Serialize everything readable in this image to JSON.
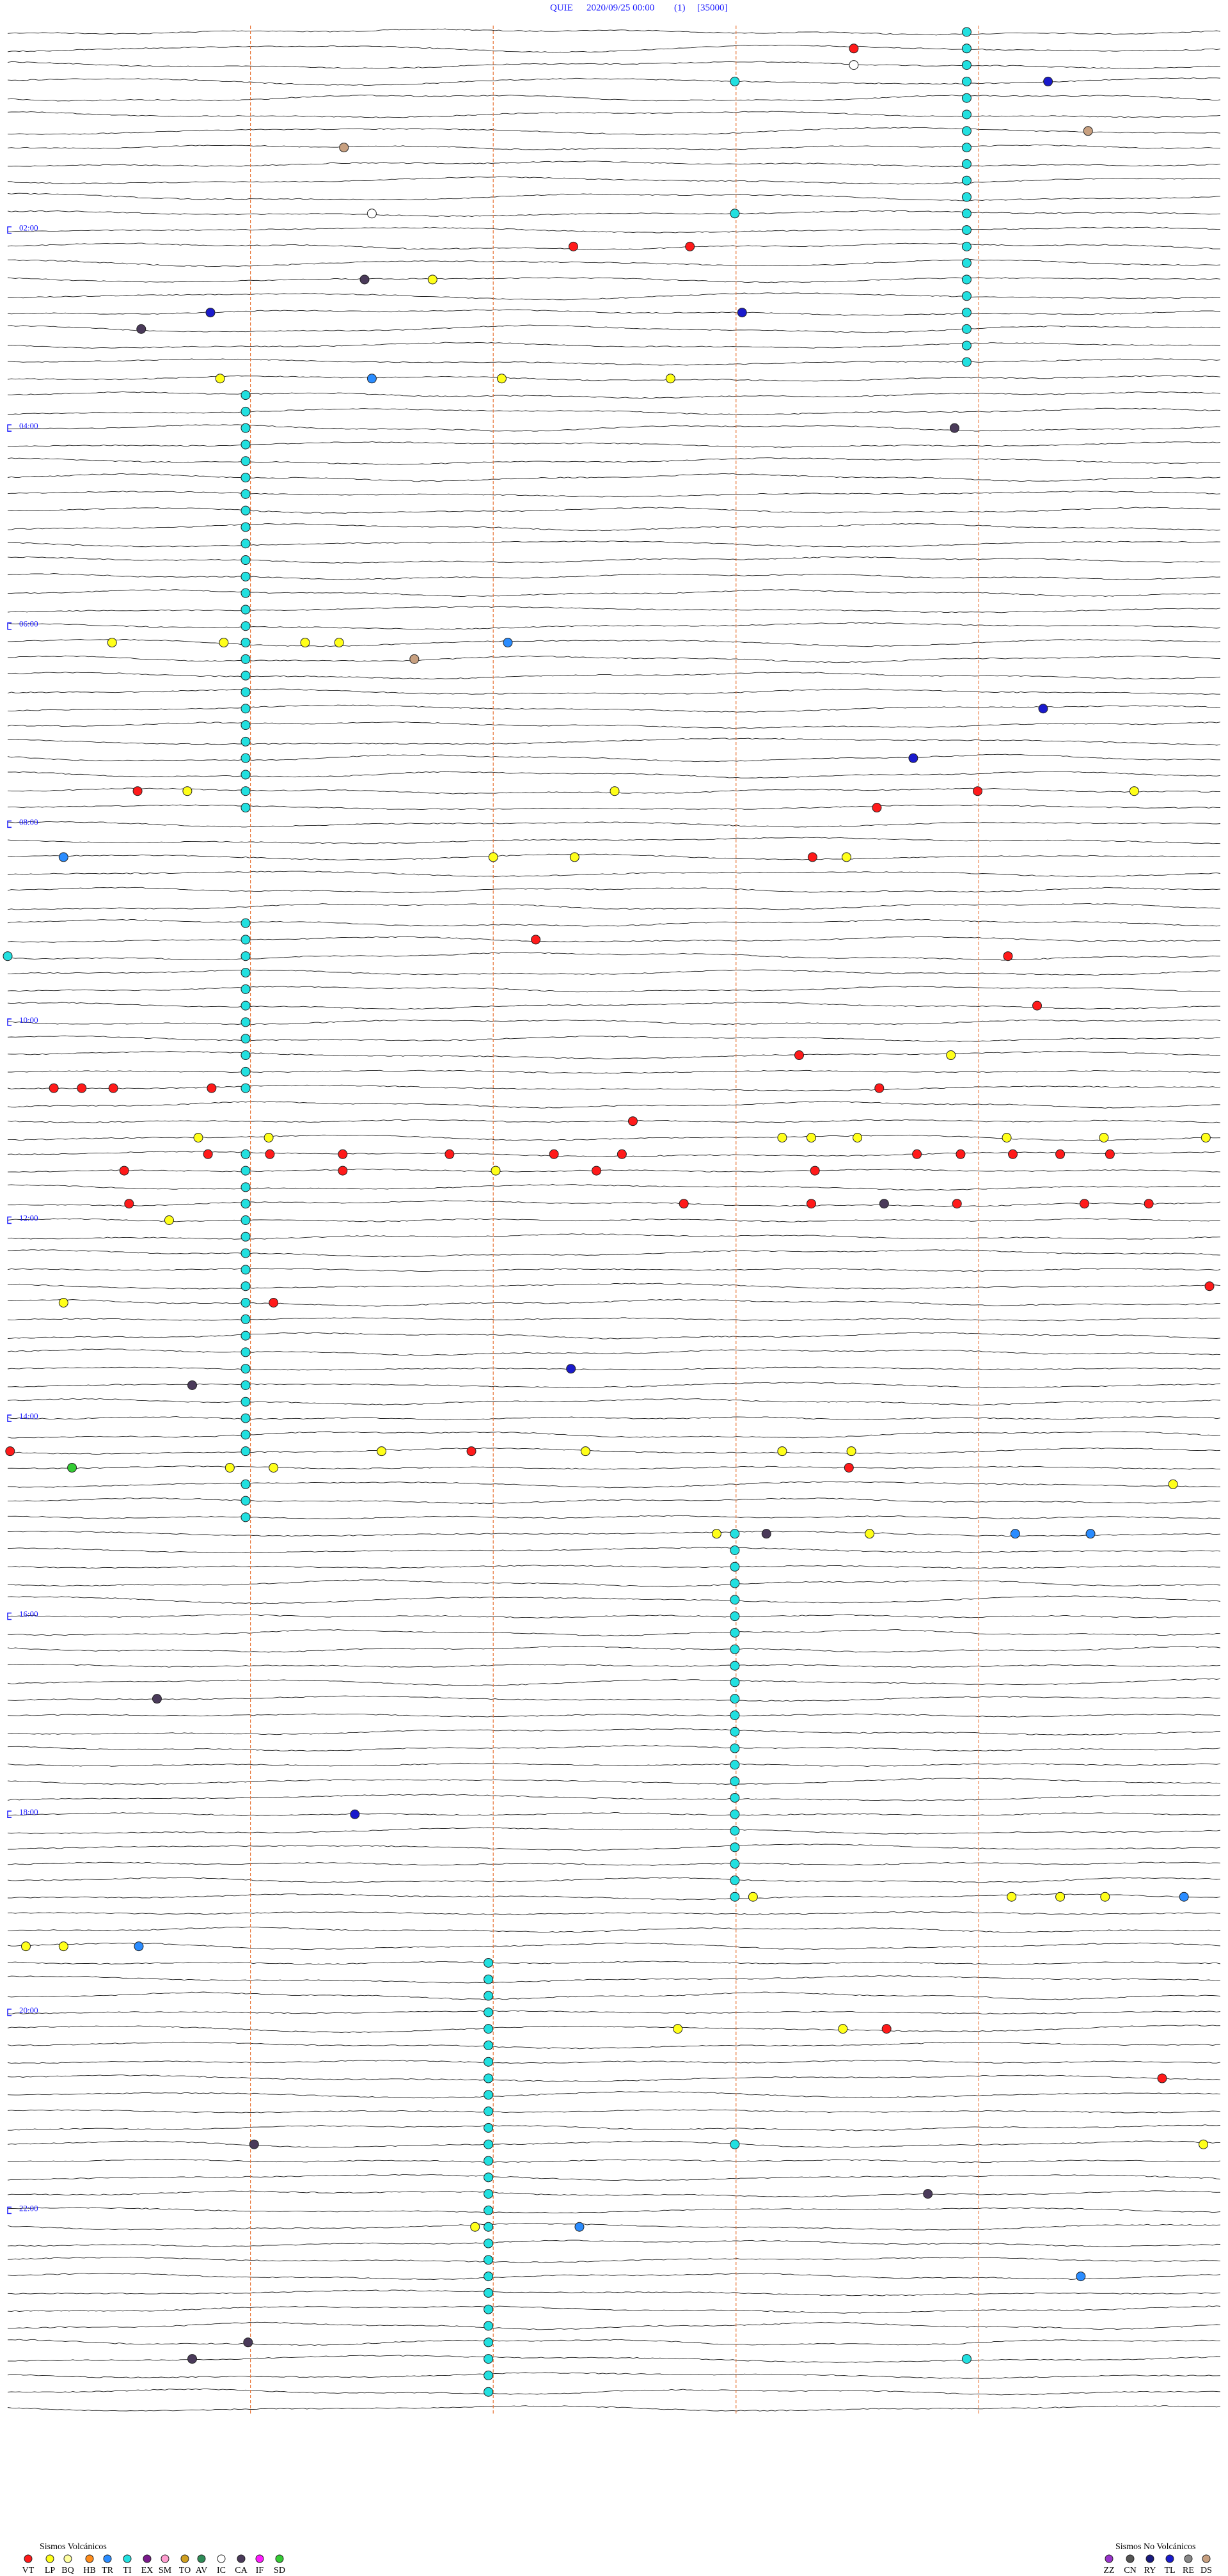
{
  "chart_data": {
    "type": "helicorder",
    "station": "QUIE",
    "date": "2020/09/25 00:00",
    "channel": "(1)",
    "scale": "[35000]",
    "xlim": [
      0,
      10
    ],
    "ylim": [
      0,
      144
    ],
    "minute_lines": [
      2,
      4,
      6,
      8
    ],
    "yticks": [
      {
        "value": 12,
        "label": "02:00"
      },
      {
        "value": 24,
        "label": "04:00"
      },
      {
        "value": 36,
        "label": "06:00"
      },
      {
        "value": 48,
        "label": "08:00"
      },
      {
        "value": 60,
        "label": "10:00"
      },
      {
        "value": 72,
        "label": "12:00"
      },
      {
        "value": 84,
        "label": "14:00"
      },
      {
        "value": 96,
        "label": "16:00"
      },
      {
        "value": 108,
        "label": "18:00"
      },
      {
        "value": 120,
        "label": "20:00"
      },
      {
        "value": 132,
        "label": "22:00"
      }
    ],
    "legend": [
      {
        "title": "Sismos Volcánicos",
        "types": [
          {
            "code": "VT",
            "color": "#ff1a1a"
          },
          {
            "code": "LP",
            "color": "#ffff1a"
          },
          {
            "code": "BQ",
            "color": "#ffffa0"
          },
          {
            "code": "HB",
            "color": "#ff8c1a"
          },
          {
            "code": "TR",
            "color": "#2a8cff"
          },
          {
            "code": "TI",
            "color": "#22e0e0"
          },
          {
            "code": "EX",
            "color": "#7a1a8c"
          },
          {
            "code": "SM",
            "color": "#ff9ed0"
          },
          {
            "code": "TO",
            "color": "#d0a020"
          },
          {
            "code": "AV",
            "color": "#2e8b57"
          },
          {
            "code": "IC",
            "color": "#ffffff"
          },
          {
            "code": "CA",
            "color": "#4a3a5a"
          },
          {
            "code": "IF",
            "color": "#ff1aff"
          },
          {
            "code": "SD",
            "color": "#33cc33"
          }
        ]
      },
      {
        "title": "Sismos No Volcánicos",
        "types": [
          {
            "code": "ZZ",
            "color": "#9933cc"
          },
          {
            "code": "CN",
            "color": "#555555"
          },
          {
            "code": "RY",
            "color": "#1a1a80"
          },
          {
            "code": "TL",
            "color": "#1a1acc"
          },
          {
            "code": "RE",
            "color": "#888888"
          },
          {
            "code": "DS",
            "color": "#c8a080"
          }
        ]
      }
    ],
    "events": [
      [
        0,
        7.9,
        "TI"
      ],
      [
        1,
        7.9,
        "TI"
      ],
      [
        2,
        7.9,
        "TI"
      ],
      [
        3,
        7.9,
        "TI"
      ],
      [
        4,
        7.9,
        "TI"
      ],
      [
        5,
        7.9,
        "TI"
      ],
      [
        6,
        7.9,
        "TI"
      ],
      [
        7,
        7.9,
        "TI"
      ],
      [
        8,
        7.9,
        "TI"
      ],
      [
        9,
        7.9,
        "TI"
      ],
      [
        10,
        7.9,
        "TI"
      ],
      [
        11,
        7.9,
        "TI"
      ],
      [
        12,
        7.9,
        "TI"
      ],
      [
        13,
        7.9,
        "TI"
      ],
      [
        14,
        7.9,
        "TI"
      ],
      [
        15,
        7.9,
        "TI"
      ],
      [
        16,
        7.9,
        "TI"
      ],
      [
        17,
        7.9,
        "TI"
      ],
      [
        18,
        7.9,
        "TI"
      ],
      [
        19,
        7.9,
        "TI"
      ],
      [
        20,
        7.9,
        "TI"
      ],
      [
        22,
        1.96,
        "TI"
      ],
      [
        23,
        1.96,
        "TI"
      ],
      [
        24,
        1.96,
        "TI"
      ],
      [
        25,
        1.96,
        "TI"
      ],
      [
        26,
        1.96,
        "TI"
      ],
      [
        27,
        1.96,
        "TI"
      ],
      [
        28,
        1.96,
        "TI"
      ],
      [
        29,
        1.96,
        "TI"
      ],
      [
        30,
        1.96,
        "TI"
      ],
      [
        31,
        1.96,
        "TI"
      ],
      [
        32,
        1.96,
        "TI"
      ],
      [
        33,
        1.96,
        "TI"
      ],
      [
        34,
        1.96,
        "TI"
      ],
      [
        35,
        1.96,
        "TI"
      ],
      [
        36,
        1.96,
        "TI"
      ],
      [
        37,
        1.96,
        "TI"
      ],
      [
        38,
        1.96,
        "TI"
      ],
      [
        39,
        1.96,
        "TI"
      ],
      [
        40,
        1.96,
        "TI"
      ],
      [
        41,
        1.96,
        "TI"
      ],
      [
        42,
        1.96,
        "TI"
      ],
      [
        43,
        1.96,
        "TI"
      ],
      [
        44,
        1.96,
        "TI"
      ],
      [
        45,
        1.96,
        "TI"
      ],
      [
        46,
        1.96,
        "TI"
      ],
      [
        47,
        1.96,
        "TI"
      ],
      [
        54,
        1.96,
        "TI"
      ],
      [
        55,
        1.96,
        "TI"
      ],
      [
        56,
        1.96,
        "TI"
      ],
      [
        57,
        1.96,
        "TI"
      ],
      [
        58,
        1.96,
        "TI"
      ],
      [
        59,
        1.96,
        "TI"
      ],
      [
        60,
        1.96,
        "TI"
      ],
      [
        61,
        1.96,
        "TI"
      ],
      [
        62,
        1.96,
        "TI"
      ],
      [
        63,
        1.96,
        "TI"
      ],
      [
        64,
        1.96,
        "TI"
      ],
      [
        68,
        1.96,
        "TI"
      ],
      [
        69,
        1.96,
        "TI"
      ],
      [
        70,
        1.96,
        "TI"
      ],
      [
        71,
        1.96,
        "TI"
      ],
      [
        72,
        1.96,
        "TI"
      ],
      [
        73,
        1.96,
        "TI"
      ],
      [
        74,
        1.96,
        "TI"
      ],
      [
        75,
        1.96,
        "TI"
      ],
      [
        76,
        1.96,
        "TI"
      ],
      [
        77,
        1.96,
        "TI"
      ],
      [
        78,
        1.96,
        "TI"
      ],
      [
        79,
        1.96,
        "TI"
      ],
      [
        80,
        1.96,
        "TI"
      ],
      [
        81,
        1.96,
        "TI"
      ],
      [
        82,
        1.96,
        "TI"
      ],
      [
        83,
        1.96,
        "TI"
      ],
      [
        84,
        1.96,
        "TI"
      ],
      [
        85,
        1.96,
        "TI"
      ],
      [
        86,
        1.96,
        "TI"
      ],
      [
        88,
        1.96,
        "TI"
      ],
      [
        89,
        1.96,
        "TI"
      ],
      [
        90,
        1.96,
        "TI"
      ],
      [
        91,
        5.99,
        "TI"
      ],
      [
        92,
        5.99,
        "TI"
      ],
      [
        93,
        5.99,
        "TI"
      ],
      [
        94,
        5.99,
        "TI"
      ],
      [
        95,
        5.99,
        "TI"
      ],
      [
        96,
        5.99,
        "TI"
      ],
      [
        97,
        5.99,
        "TI"
      ],
      [
        98,
        5.99,
        "TI"
      ],
      [
        99,
        5.99,
        "TI"
      ],
      [
        100,
        5.99,
        "TI"
      ],
      [
        101,
        5.99,
        "TI"
      ],
      [
        102,
        5.99,
        "TI"
      ],
      [
        103,
        5.99,
        "TI"
      ],
      [
        104,
        5.99,
        "TI"
      ],
      [
        105,
        5.99,
        "TI"
      ],
      [
        106,
        5.99,
        "TI"
      ],
      [
        107,
        5.99,
        "TI"
      ],
      [
        108,
        5.99,
        "TI"
      ],
      [
        109,
        5.99,
        "TI"
      ],
      [
        110,
        5.99,
        "TI"
      ],
      [
        111,
        5.99,
        "TI"
      ],
      [
        112,
        5.99,
        "TI"
      ],
      [
        113,
        5.99,
        "TI"
      ],
      [
        117,
        3.96,
        "TI"
      ],
      [
        118,
        3.96,
        "TI"
      ],
      [
        119,
        3.96,
        "TI"
      ],
      [
        120,
        3.96,
        "TI"
      ],
      [
        121,
        3.96,
        "TI"
      ],
      [
        122,
        3.96,
        "TI"
      ],
      [
        123,
        3.96,
        "TI"
      ],
      [
        124,
        3.96,
        "TI"
      ],
      [
        125,
        3.96,
        "TI"
      ],
      [
        126,
        3.96,
        "TI"
      ],
      [
        127,
        3.96,
        "TI"
      ],
      [
        128,
        3.96,
        "TI"
      ],
      [
        129,
        3.96,
        "TI"
      ],
      [
        130,
        3.96,
        "TI"
      ],
      [
        131,
        3.96,
        "TI"
      ],
      [
        132,
        3.96,
        "TI"
      ],
      [
        133,
        3.96,
        "TI"
      ],
      [
        134,
        3.96,
        "TI"
      ],
      [
        135,
        3.96,
        "TI"
      ],
      [
        136,
        3.96,
        "TI"
      ],
      [
        137,
        3.96,
        "TI"
      ],
      [
        138,
        3.96,
        "TI"
      ],
      [
        139,
        3.96,
        "TI"
      ],
      [
        140,
        3.96,
        "TI"
      ],
      [
        141,
        3.96,
        "TI"
      ],
      [
        142,
        3.96,
        "TI"
      ],
      [
        143,
        3.96,
        "TI"
      ],
      [
        3,
        5.99,
        "TI"
      ],
      [
        11,
        5.99,
        "TI"
      ],
      [
        56,
        0,
        "TI"
      ],
      [
        128,
        5.99,
        "TI"
      ],
      [
        141,
        7.9,
        "TI"
      ],
      [
        1,
        6.97,
        "VT"
      ],
      [
        2,
        6.97,
        "IC"
      ],
      [
        3,
        8.57,
        "TL"
      ],
      [
        6,
        8.9,
        "DS"
      ],
      [
        7,
        2.77,
        "DS"
      ],
      [
        11,
        3.0,
        "IC"
      ],
      [
        13,
        4.66,
        "VT"
      ],
      [
        13,
        5.62,
        "VT"
      ],
      [
        15,
        2.94,
        "CA"
      ],
      [
        15,
        3.5,
        "LP"
      ],
      [
        17,
        1.67,
        "TL"
      ],
      [
        17,
        6.05,
        "TL"
      ],
      [
        18,
        1.1,
        "CA"
      ],
      [
        21,
        1.75,
        "LP"
      ],
      [
        21,
        3.0,
        "TR"
      ],
      [
        21,
        4.07,
        "LP"
      ],
      [
        21,
        5.46,
        "LP"
      ],
      [
        24,
        7.8,
        "CA"
      ],
      [
        37,
        0.86,
        "LP"
      ],
      [
        37,
        1.78,
        "LP"
      ],
      [
        37,
        2.45,
        "LP"
      ],
      [
        37,
        2.73,
        "LP"
      ],
      [
        37,
        4.12,
        "TR"
      ],
      [
        38,
        3.35,
        "DS"
      ],
      [
        41,
        8.53,
        "TL"
      ],
      [
        44,
        7.46,
        "TL"
      ],
      [
        46,
        1.07,
        "VT"
      ],
      [
        46,
        1.48,
        "LP"
      ],
      [
        46,
        5.0,
        "LP"
      ],
      [
        46,
        7.99,
        "VT"
      ],
      [
        46,
        9.28,
        "LP"
      ],
      [
        47,
        7.16,
        "VT"
      ],
      [
        50,
        0.46,
        "TR"
      ],
      [
        50,
        4.0,
        "LP"
      ],
      [
        50,
        4.67,
        "LP"
      ],
      [
        50,
        6.63,
        "VT"
      ],
      [
        50,
        6.91,
        "LP"
      ],
      [
        55,
        4.35,
        "VT"
      ],
      [
        56,
        8.24,
        "VT"
      ],
      [
        59,
        8.48,
        "VT"
      ],
      [
        62,
        6.52,
        "VT"
      ],
      [
        62,
        7.77,
        "LP"
      ],
      [
        64,
        7.18,
        "VT"
      ],
      [
        64,
        0.38,
        "VT"
      ],
      [
        64,
        0.61,
        "VT"
      ],
      [
        64,
        0.87,
        "VT"
      ],
      [
        64,
        1.68,
        "VT"
      ],
      [
        66,
        5.15,
        "VT"
      ],
      [
        67,
        1.57,
        "LP"
      ],
      [
        67,
        2.15,
        "LP"
      ],
      [
        67,
        6.38,
        "LP"
      ],
      [
        67,
        6.62,
        "LP"
      ],
      [
        67,
        7.0,
        "LP"
      ],
      [
        67,
        8.23,
        "LP"
      ],
      [
        67,
        9.03,
        "LP"
      ],
      [
        67,
        9.87,
        "LP"
      ],
      [
        68,
        1.65,
        "VT"
      ],
      [
        68,
        2.16,
        "VT"
      ],
      [
        68,
        2.76,
        "VT"
      ],
      [
        68,
        3.64,
        "VT"
      ],
      [
        68,
        4.5,
        "VT"
      ],
      [
        68,
        5.06,
        "VT"
      ],
      [
        68,
        7.49,
        "VT"
      ],
      [
        68,
        7.85,
        "VT"
      ],
      [
        68,
        8.28,
        "VT"
      ],
      [
        68,
        8.67,
        "VT"
      ],
      [
        68,
        9.08,
        "VT"
      ],
      [
        69,
        0.96,
        "VT"
      ],
      [
        69,
        2.76,
        "VT"
      ],
      [
        69,
        4.85,
        "VT"
      ],
      [
        69,
        6.65,
        "VT"
      ],
      [
        69,
        4.02,
        "LP"
      ],
      [
        71,
        5.57,
        "VT"
      ],
      [
        71,
        6.62,
        "VT"
      ],
      [
        71,
        7.82,
        "VT"
      ],
      [
        71,
        8.87,
        "VT"
      ],
      [
        71,
        9.4,
        "VT"
      ],
      [
        71,
        1.0,
        "VT"
      ],
      [
        71,
        7.22,
        "CA"
      ],
      [
        72,
        1.33,
        "LP"
      ],
      [
        76,
        9.9,
        "VT"
      ],
      [
        77,
        0.46,
        "LP"
      ],
      [
        77,
        2.19,
        "VT"
      ],
      [
        81,
        4.64,
        "TL"
      ],
      [
        82,
        1.52,
        "CA"
      ],
      [
        86,
        0.02,
        "VT"
      ],
      [
        86,
        3.82,
        "VT"
      ],
      [
        86,
        4.76,
        "LP"
      ],
      [
        86,
        6.38,
        "LP"
      ],
      [
        86,
        3.08,
        "LP"
      ],
      [
        86,
        6.95,
        "LP"
      ],
      [
        87,
        0.53,
        "SD"
      ],
      [
        87,
        6.93,
        "VT"
      ],
      [
        87,
        1.83,
        "LP"
      ],
      [
        87,
        2.19,
        "LP"
      ],
      [
        88,
        9.6,
        "LP"
      ],
      [
        91,
        5.84,
        "LP"
      ],
      [
        91,
        6.25,
        "CA"
      ],
      [
        91,
        7.1,
        "LP"
      ],
      [
        91,
        8.3,
        "TR"
      ],
      [
        91,
        8.92,
        "TR"
      ],
      [
        101,
        1.23,
        "CA"
      ],
      [
        108,
        2.86,
        "TL"
      ],
      [
        113,
        6.14,
        "LP"
      ],
      [
        113,
        8.27,
        "LP"
      ],
      [
        113,
        8.67,
        "LP"
      ],
      [
        113,
        9.04,
        "LP"
      ],
      [
        113,
        9.69,
        "TR"
      ],
      [
        116,
        0.15,
        "LP"
      ],
      [
        116,
        0.46,
        "LP"
      ],
      [
        116,
        1.08,
        "TR"
      ],
      [
        121,
        5.52,
        "LP"
      ],
      [
        121,
        6.88,
        "LP"
      ],
      [
        121,
        7.24,
        "VT"
      ],
      [
        124,
        9.51,
        "VT"
      ],
      [
        128,
        9.85,
        "LP"
      ],
      [
        128,
        2.03,
        "CA"
      ],
      [
        131,
        7.58,
        "CA"
      ],
      [
        133,
        3.85,
        "LP"
      ],
      [
        133,
        4.71,
        "TR"
      ],
      [
        136,
        8.84,
        "TR"
      ],
      [
        140,
        1.98,
        "CA"
      ],
      [
        141,
        1.52,
        "CA"
      ]
    ]
  }
}
